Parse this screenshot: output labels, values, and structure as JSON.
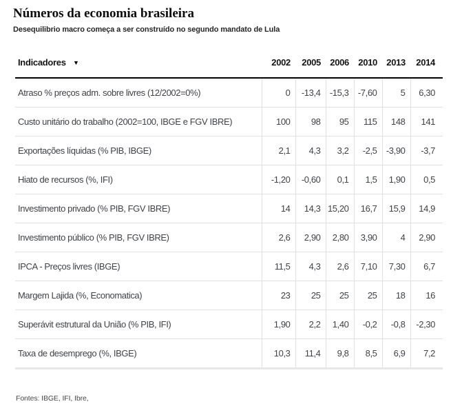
{
  "page": {
    "title": "Números da economia brasileira",
    "subtitle": "Desequilibrio macro começa a ser construído no segundo mandato de Lula",
    "footnote": "Fontes: IBGE, IFI, Ibre,"
  },
  "chart_data": {
    "type": "table",
    "title": "Números da economia brasileira",
    "subtitle": "Desequilibrio macro começa a ser construído no segundo mandato de Lula",
    "sort_icon": "▼",
    "columns": [
      "Indicadores",
      "2002",
      "2005",
      "2006",
      "2010",
      "2013",
      "2014"
    ],
    "rows": [
      {
        "label": "Atraso % preços adm. sobre livres (12/2002=0%)",
        "values": [
          "0",
          "-13,4",
          "-15,3",
          "-7,60",
          "5",
          "6,30"
        ]
      },
      {
        "label": "Custo unitário do trabalho (2002=100, IBGE e FGV IBRE)",
        "values": [
          "100",
          "98",
          "95",
          "115",
          "148",
          "141"
        ]
      },
      {
        "label": "Exportações líquidas (% PIB, IBGE)",
        "values": [
          "2,1",
          "4,3",
          "3,2",
          "-2,5",
          "-3,90",
          "-3,7"
        ]
      },
      {
        "label": "Hiato de recursos (%, IFI)",
        "values": [
          "-1,20",
          "-0,60",
          "0,1",
          "1,5",
          "1,90",
          "0,5"
        ]
      },
      {
        "label": "Investimento privado (% PIB, FGV IBRE)",
        "values": [
          "14",
          "14,3",
          "15,20",
          "16,7",
          "15,9",
          "14,9"
        ]
      },
      {
        "label": "Investimento público (% PIB, FGV IBRE)",
        "values": [
          "2,6",
          "2,90",
          "2,80",
          "3,90",
          "4",
          "2,90"
        ]
      },
      {
        "label": "IPCA - Preços livres (IBGE)",
        "values": [
          "11,5",
          "4,3",
          "2,6",
          "7,10",
          "7,30",
          "6,7"
        ]
      },
      {
        "label": "Margem Lajida (%, Economatica)",
        "values": [
          "23",
          "25",
          "25",
          "25",
          "18",
          "16"
        ]
      },
      {
        "label": "Superávit estrutural da União (% PIB, IFI)",
        "values": [
          "1,90",
          "2,2",
          "1,40",
          "-0,2",
          "-0,8",
          "-2,30"
        ]
      },
      {
        "label": "Taxa de desemprego (%, IBGE)",
        "values": [
          "10,3",
          "11,4",
          "9,8",
          "8,5",
          "6,9",
          "7,2"
        ]
      }
    ],
    "footnote": "Fontes: IBGE, IFI, Ibre,",
    "colors": {
      "text": "#3f4246",
      "header_text": "#141414",
      "grid_line": "#e0e0e0",
      "header_rule": "#000000",
      "bottom_rule": "#e7e7e7",
      "background": "#ffffff"
    }
  }
}
